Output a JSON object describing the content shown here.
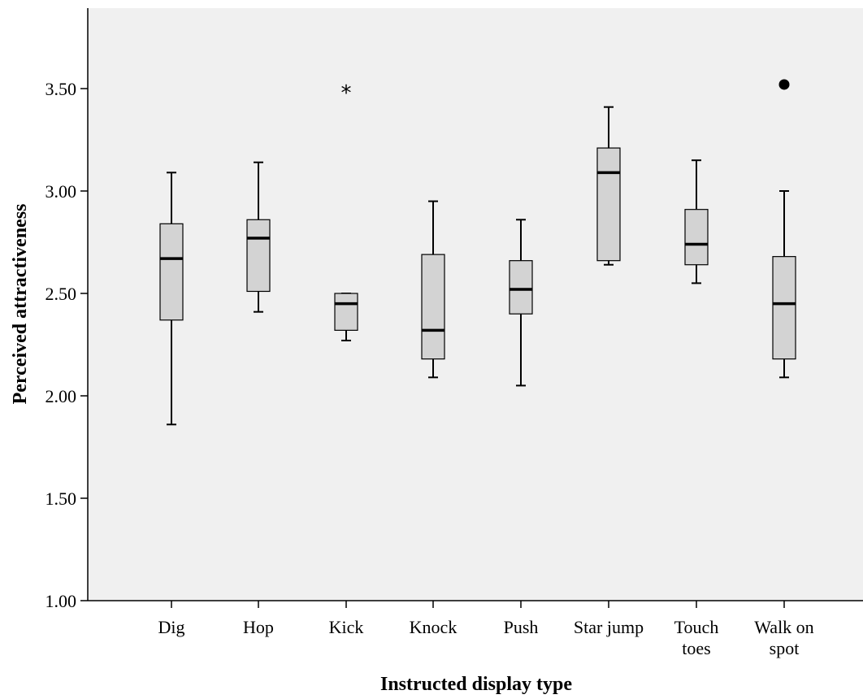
{
  "chart_data": {
    "type": "boxplot",
    "xlabel": "Instructed display type",
    "ylabel": "Perceived attractiveness",
    "ylim": [
      1.0,
      3.85
    ],
    "yticks": [
      "1.00",
      "1.50",
      "2.00",
      "2.50",
      "3.00",
      "3.50"
    ],
    "grid": false,
    "plot_background": "#f0f0f0",
    "box_fill": "#d3d3d3",
    "categories": [
      {
        "label": [
          "Dig"
        ],
        "min": 1.86,
        "q1": 2.37,
        "median": 2.67,
        "q3": 2.84,
        "max": 3.09,
        "outliers": []
      },
      {
        "label": [
          "Hop"
        ],
        "min": 2.41,
        "q1": 2.51,
        "median": 2.77,
        "q3": 2.86,
        "max": 3.14,
        "outliers": []
      },
      {
        "label": [
          "Kick"
        ],
        "min": 2.27,
        "q1": 2.32,
        "median": 2.45,
        "q3": 2.5,
        "max": 2.5,
        "outliers": [
          {
            "value": 3.5,
            "marker": "star",
            "symbol": "*"
          }
        ]
      },
      {
        "label": [
          "Knock"
        ],
        "min": 2.09,
        "q1": 2.18,
        "median": 2.32,
        "q3": 2.69,
        "max": 2.95,
        "outliers": []
      },
      {
        "label": [
          "Push"
        ],
        "min": 2.05,
        "q1": 2.4,
        "median": 2.52,
        "q3": 2.66,
        "max": 2.86,
        "outliers": []
      },
      {
        "label": [
          "Star jump"
        ],
        "min": 2.64,
        "q1": 2.66,
        "median": 3.09,
        "q3": 3.21,
        "max": 3.41,
        "outliers": []
      },
      {
        "label": [
          "Touch",
          "toes"
        ],
        "min": 2.55,
        "q1": 2.64,
        "median": 2.74,
        "q3": 2.91,
        "max": 3.15,
        "outliers": []
      },
      {
        "label": [
          "Walk on",
          "spot"
        ],
        "min": 2.09,
        "q1": 2.18,
        "median": 2.45,
        "q3": 2.68,
        "max": 3.0,
        "outliers": [
          {
            "value": 3.52,
            "marker": "circle",
            "symbol": ""
          }
        ]
      }
    ]
  }
}
